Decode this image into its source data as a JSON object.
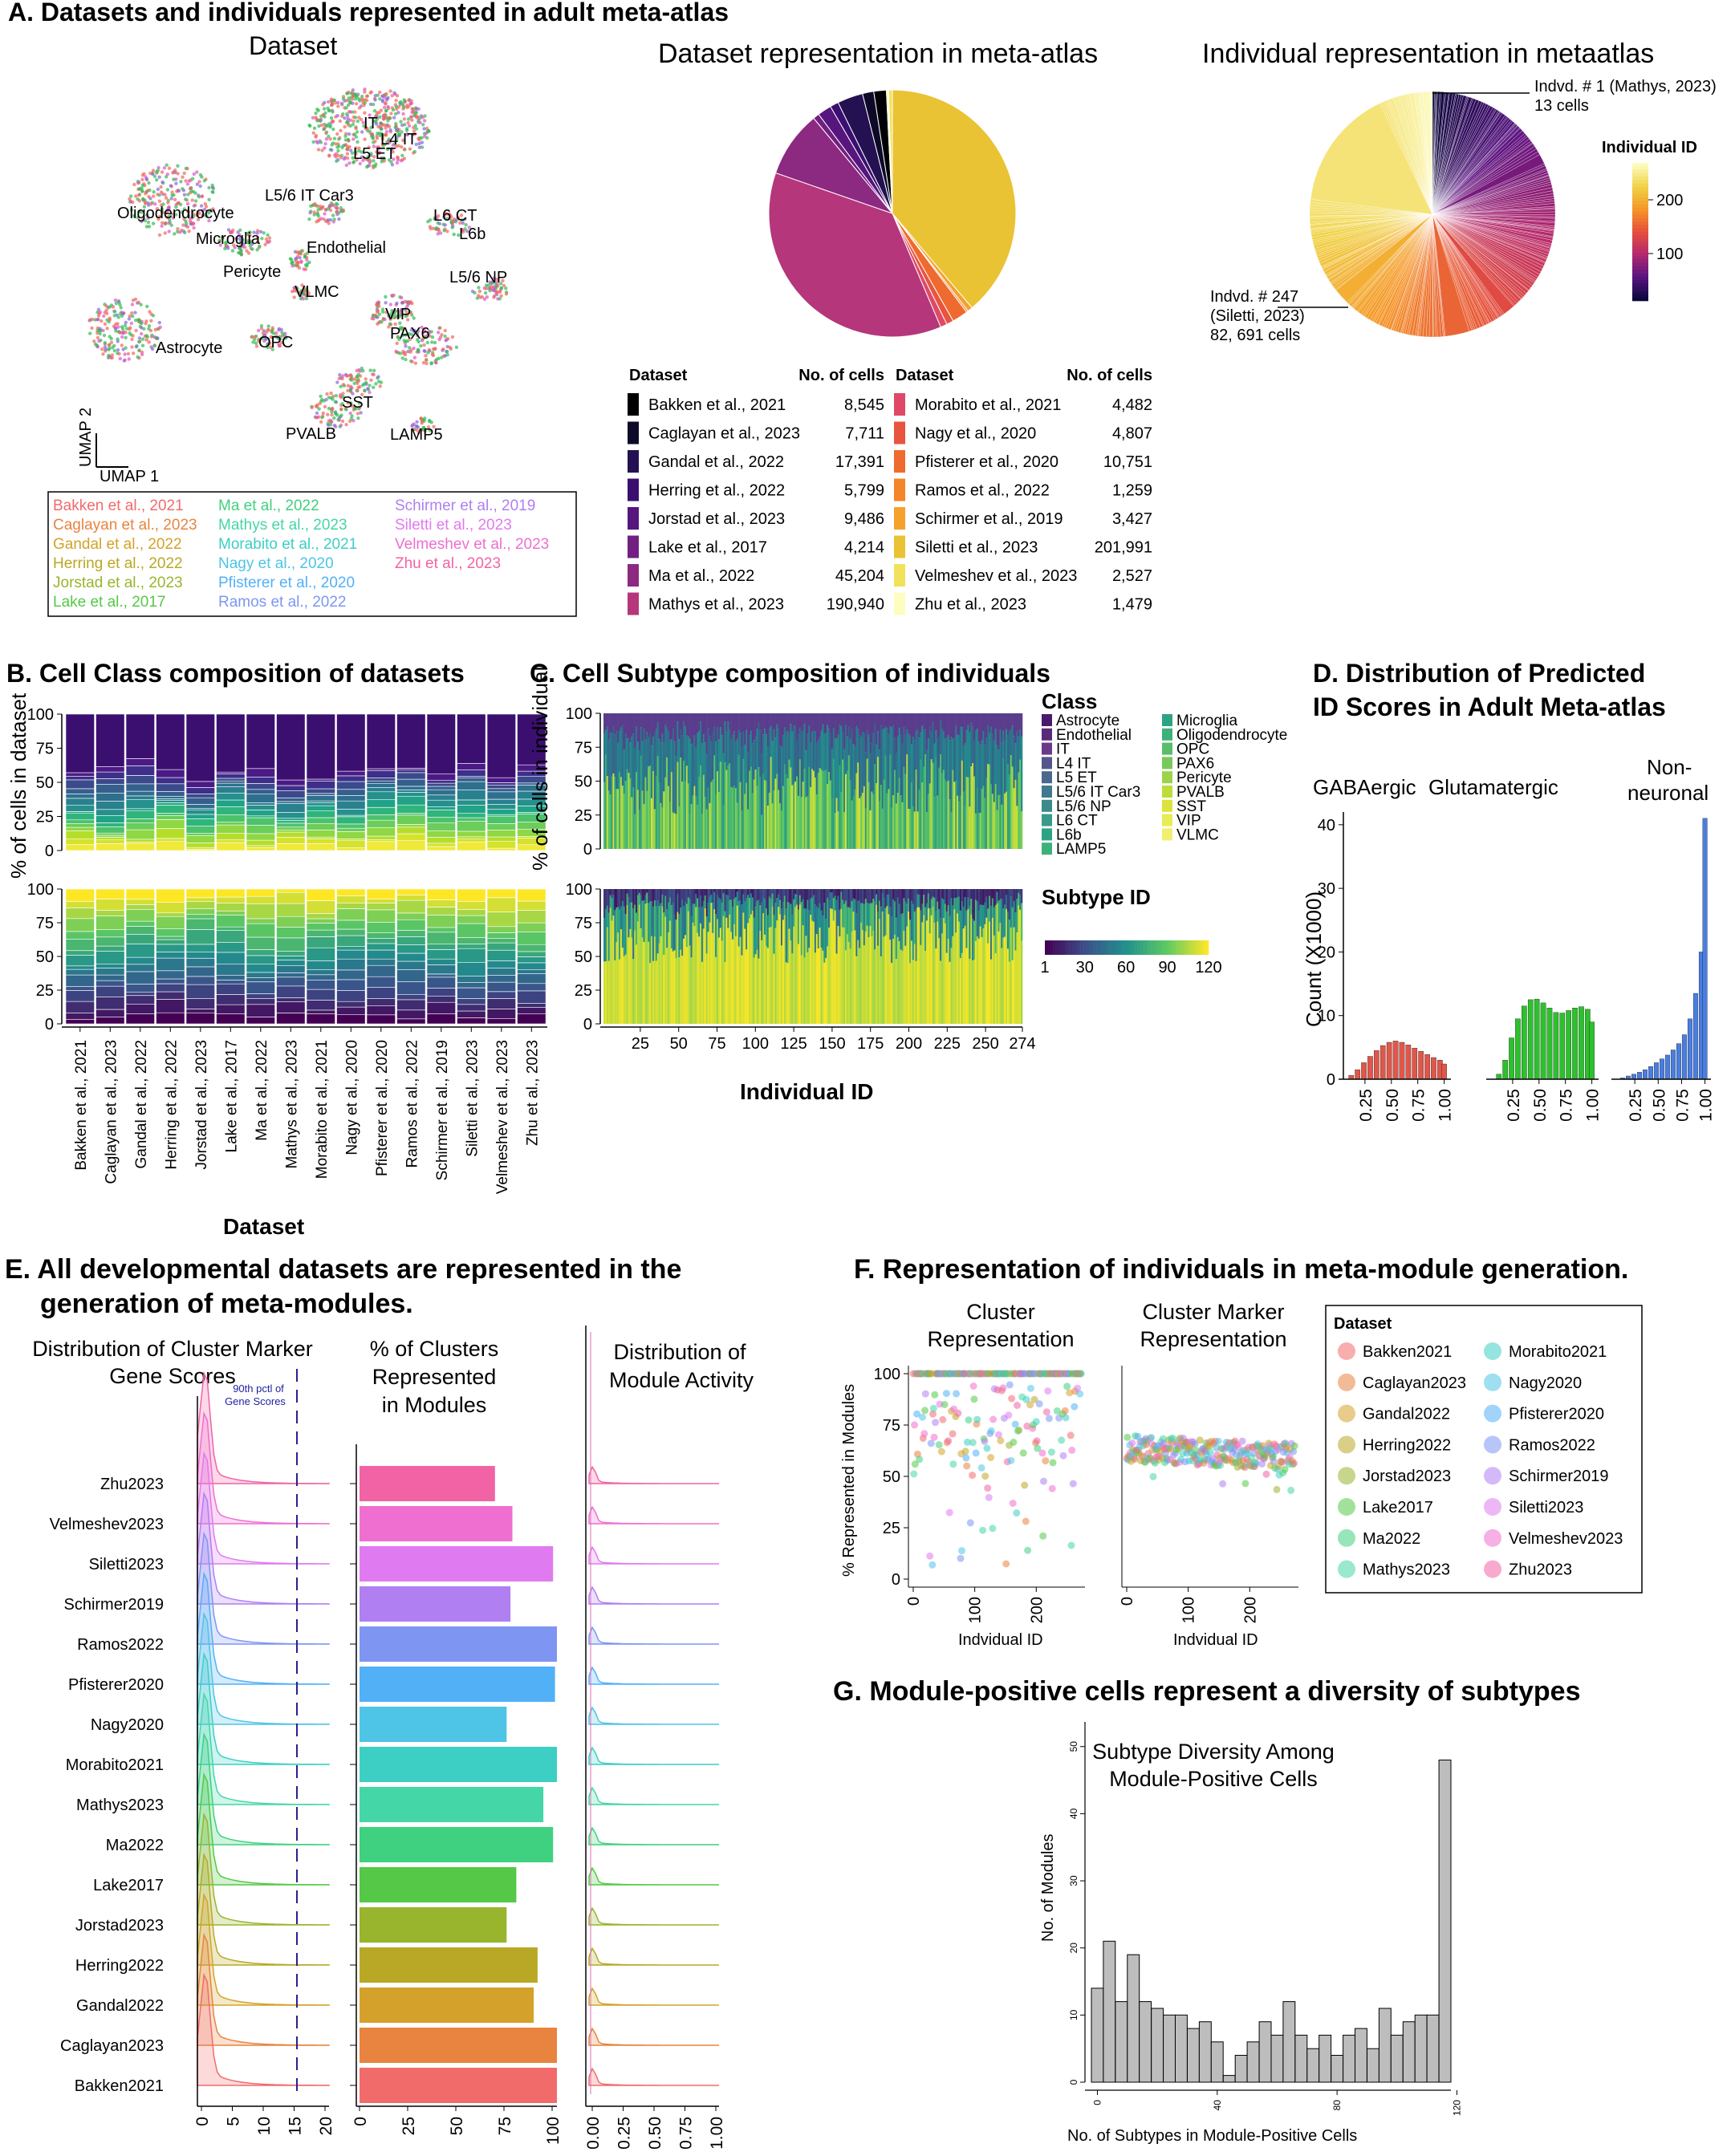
{
  "colors": {
    "datasets": [
      "#f26b6b",
      "#e8843f",
      "#d4a22a",
      "#b9a825",
      "#98b52d",
      "#55c847",
      "#3fd17f",
      "#45d6a8",
      "#3dcfc4",
      "#4ec4e6",
      "#52b0f7",
      "#7e96f2",
      "#b07ff2",
      "#e07af0",
      "#ee6fd0",
      "#f263a5"
    ],
    "umap_groups": [
      "#f0665c",
      "#33bb55",
      "#8866dd",
      "#dd55cc"
    ],
    "hist_red": "#e0574a",
    "hist_green": "#2ec02e",
    "hist_blue": "#4a7ee0",
    "line_purple": "#2a1f8f"
  },
  "panelA": {
    "title": "A. Datasets and individuals represented in adult meta-atlas",
    "umap_title": "Dataset",
    "umap_clusters": [
      "IT",
      "L4 IT",
      "L5 ET",
      "L5/6 IT Car3",
      "Oligodendrocyte",
      "L6 CT",
      "L6b",
      "Microglia",
      "Endothelial",
      "Pericyte",
      "VLMC",
      "L5/6 NP",
      "VIP",
      "PAX6",
      "Astrocyte",
      "OPC",
      "SST",
      "PVALB",
      "LAMP5"
    ],
    "umap_axes": [
      "UMAP 1",
      "UMAP 2"
    ],
    "legend_col1": [
      "Bakken et al., 2021",
      "Caglayan et al., 2023",
      "Gandal et al., 2022",
      "Herring et al., 2022",
      "Jorstad et al., 2023",
      "Lake et al., 2017"
    ],
    "legend_col2": [
      "Ma et al., 2022",
      "Mathys et al., 2023",
      "Morabito et al., 2021",
      "Nagy et al., 2020",
      "Pfisterer et al., 2020",
      "Ramos et al., 2022"
    ],
    "legend_col3": [
      "Schirmer et al., 2019",
      "Siletti et al., 2023",
      "Velmeshev et al., 2023",
      "Zhu et al., 2023"
    ],
    "pie1_title": "Dataset representation in meta-atlas",
    "pie2_title": "Individual representation in metaatlas",
    "table_headers": [
      "Dataset",
      "No. of cells",
      "Dataset",
      "No. of cells"
    ],
    "table_left": [
      {
        "name": "Bakken et al., 2021",
        "cells": "8,545",
        "color": "#000004"
      },
      {
        "name": "Caglayan et al., 2023",
        "cells": "7,711",
        "color": "#0d0a29"
      },
      {
        "name": "Gandal et al., 2022",
        "cells": "17,391",
        "color": "#231151"
      },
      {
        "name": "Herring et al., 2022",
        "cells": "5,799",
        "color": "#3b0f70"
      },
      {
        "name": "Jorstad et al., 2023",
        "cells": "9,486",
        "color": "#57157e"
      },
      {
        "name": "Lake et al., 2017",
        "cells": "4,214",
        "color": "#721f81"
      },
      {
        "name": "Ma et al., 2022",
        "cells": "45,204",
        "color": "#8c2981"
      },
      {
        "name": "Mathys et al., 2023",
        "cells": "190,940",
        "color": "#b5367a"
      }
    ],
    "table_right": [
      {
        "name": "Morabito et al., 2021",
        "cells": "4,482",
        "color": "#de4968"
      },
      {
        "name": "Nagy et al., 2020",
        "cells": "4,807",
        "color": "#e8543e"
      },
      {
        "name": "Pfisterer et al., 2020",
        "cells": "10,751",
        "color": "#ef6a2e"
      },
      {
        "name": "Ramos et al., 2022",
        "cells": "1,259",
        "color": "#f4852a"
      },
      {
        "name": "Schirmer et al., 2019",
        "cells": "3,427",
        "color": "#f5a12c"
      },
      {
        "name": "Siletti et al., 2023",
        "cells": "201,991",
        "color": "#eac334"
      },
      {
        "name": "Velmeshev et al., 2023",
        "cells": "2,527",
        "color": "#f2e15a"
      },
      {
        "name": "Zhu et al., 2023",
        "cells": "1,479",
        "color": "#fcfdbf"
      }
    ],
    "annot1": [
      "Indvd. # 1 (Mathys, 2023)",
      "13 cells"
    ],
    "annot2": [
      "Indvd. # 247",
      "(Siletti, 2023)",
      "82, 691 cells"
    ],
    "colorbar_title": "Individual ID",
    "colorbar_ticks": [
      "200",
      "100"
    ]
  },
  "panelB": {
    "title": "B. Cell Class composition of datasets",
    "ylabel": "% of cells in dataset",
    "xlabel": "Dataset",
    "yticks": [
      "100",
      "75",
      "50",
      "25",
      "0"
    ],
    "categories": [
      "Bakken et al., 2021",
      "Caglayan et al., 2023",
      "Gandal et al., 2022",
      "Herring et al., 2022",
      "Jorstad et al., 2023",
      "Lake et al., 2017",
      "Ma et al., 2022",
      "Mathys et al., 2023",
      "Morabito et al., 2021",
      "Nagy et al., 2020",
      "Pfisterer et al., 2020",
      "Ramos et al., 2022",
      "Schirmer et al., 2019",
      "Siletti et al., 2023",
      "Velmeshev et al., 2023",
      "Zhu et al., 2023"
    ]
  },
  "panelC": {
    "title": "C. Cell Subtype composition of individuals",
    "ylabel": "% of cells in individual",
    "xlabel": "Individual ID",
    "xticks": [
      "25",
      "50",
      "75",
      "100",
      "125",
      "150",
      "175",
      "200",
      "225",
      "250",
      "274"
    ],
    "legend_title": "Class",
    "classes_col1": [
      "Astrocyte",
      "Endothelial",
      "IT",
      "L4 IT",
      "L5 ET",
      "L5/6 IT Car3",
      "L5/6 NP",
      "L6 CT",
      "L6b",
      "LAMP5"
    ],
    "classes_col2": [
      "Microglia",
      "Oligodendrocyte",
      "OPC",
      "PAX6",
      "Pericyte",
      "PVALB",
      "SST",
      "VIP",
      "VLMC"
    ],
    "subtype_title": "Subtype ID",
    "subtype_ticks": [
      "1",
      "30",
      "60",
      "90",
      "120"
    ]
  },
  "panelD": {
    "title_lines": [
      "D. Distribution of Predicted",
      "ID Scores in Adult Meta-atlas"
    ],
    "facets": [
      "GABAergic",
      "Glutamatergic",
      "Non-",
      "neuronal"
    ],
    "ylabel": "Count (X1000)",
    "yticks": [
      "40",
      "30",
      "20",
      "10",
      "0"
    ],
    "xticks": [
      "0.25",
      "0.50",
      "0.75",
      "1.00"
    ]
  },
  "panelE": {
    "title_lines": [
      "E. All developmental datasets are represented in the",
      "generation of meta-modules."
    ],
    "sub1": [
      "Distribution of Cluster Marker",
      "Gene Scores"
    ],
    "sub2": [
      "% of Clusters",
      "Represented",
      "in Modules"
    ],
    "sub3": [
      "Distribution of",
      "Module Activity"
    ],
    "pctl_label": [
      "90th pctl of",
      "Gene Scores"
    ],
    "rows": [
      "Zhu2023",
      "Velmeshev2023",
      "Siletti2023",
      "Schirmer2019",
      "Ramos2022",
      "Pfisterer2020",
      "Nagy2020",
      "Morabito2021",
      "Mathys2023",
      "Ma2022",
      "Lake2017",
      "Jorstad2023",
      "Herring2022",
      "Gandal2022",
      "Caglayan2023",
      "Bakken2021"
    ],
    "x1_ticks": [
      "0",
      "5",
      "10",
      "15",
      "20"
    ],
    "x2_ticks": [
      "0",
      "25",
      "50",
      "75",
      "100"
    ],
    "x3_ticks": [
      "0.00",
      "0.25",
      "0.50",
      "0.75",
      "1.00"
    ]
  },
  "panelF": {
    "title": "F. Representation of individuals in meta-module generation.",
    "sub1": [
      "Cluster",
      "Representation"
    ],
    "sub2": [
      "Cluster Marker",
      "Representation"
    ],
    "ylabel": "% Represented in Modules",
    "xlabel": "Indvidual ID",
    "yticks": [
      "100",
      "75",
      "50",
      "25",
      "0"
    ],
    "xticks": [
      "0",
      "100",
      "200"
    ],
    "legend_title": "Dataset",
    "legend_col1": [
      "Bakken2021",
      "Caglayan2023",
      "Gandal2022",
      "Herring2022",
      "Jorstad2023",
      "Lake2017",
      "Ma2022",
      "Mathys2023"
    ],
    "legend_col2": [
      "Morabito2021",
      "Nagy2020",
      "Pfisterer2020",
      "Ramos2022",
      "Schirmer2019",
      "Siletti2023",
      "Velmeshev2023",
      "Zhu2023"
    ]
  },
  "panelG": {
    "title": "G. Module-positive cells represent a diversity of subtypes",
    "plot_title": [
      "Subtype Diversity Among",
      "Module-Positive Cells"
    ],
    "ylabel": "No. of Modules",
    "xlabel": "No. of Subtypes in Module-Positive Cells",
    "yticks": [
      "0",
      "10",
      "20",
      "30",
      "40",
      "50"
    ],
    "xticks": [
      "0",
      "40",
      "80",
      "120"
    ]
  },
  "chart_data": [
    {
      "type": "scatter",
      "title": "Dataset",
      "xlabel": "UMAP 1",
      "ylabel": "UMAP 2",
      "note": "UMAP embedding colored by dataset with cluster labels"
    },
    {
      "type": "pie",
      "title": "Dataset representation in meta-atlas",
      "categories": [
        "Bakken et al., 2021",
        "Caglayan et al., 2023",
        "Gandal et al., 2022",
        "Herring et al., 2022",
        "Jorstad et al., 2023",
        "Lake et al., 2017",
        "Ma et al., 2022",
        "Mathys et al., 2023",
        "Morabito et al., 2021",
        "Nagy et al., 2020",
        "Pfisterer et al., 2020",
        "Ramos et al., 2022",
        "Schirmer et al., 2019",
        "Siletti et al., 2023",
        "Velmeshev et al., 2023",
        "Zhu et al., 2023"
      ],
      "values": [
        8545,
        7711,
        17391,
        5799,
        9486,
        4214,
        45204,
        190940,
        4482,
        4807,
        10751,
        1259,
        3427,
        201991,
        2527,
        1479
      ]
    },
    {
      "type": "pie",
      "title": "Individual representation in metaatlas",
      "note": "274 individuals colored by Individual ID",
      "colorbar_range": [
        1,
        274
      ]
    },
    {
      "type": "bar",
      "title": "Cell Class composition of datasets",
      "stacked": true,
      "ylabel": "% of cells in dataset",
      "ylim": [
        0,
        100
      ]
    },
    {
      "type": "bar",
      "title": "Cell Subtype composition of individuals",
      "stacked": true,
      "xlabel": "Individual ID",
      "xlim": [
        1,
        274
      ],
      "ylim": [
        0,
        100
      ]
    },
    {
      "type": "bar",
      "title": "Distribution of Predicted ID Scores",
      "facets": [
        "GABAergic",
        "Glutamatergic",
        "Non-neuronal"
      ],
      "ylabel": "Count (X1000)",
      "ylim": [
        0,
        42
      ],
      "xlim": [
        0.0,
        1.0
      ],
      "x": [
        0.12,
        0.18,
        0.24,
        0.3,
        0.36,
        0.42,
        0.48,
        0.54,
        0.6,
        0.66,
        0.72,
        0.78,
        0.84,
        0.9,
        0.96,
        1.0
      ],
      "series": [
        {
          "name": "GABAergic",
          "values": [
            0.6,
            1.5,
            2.6,
            3.6,
            4.5,
            5.3,
            5.8,
            6.0,
            5.8,
            5.4,
            4.9,
            4.4,
            3.9,
            3.4,
            3.0,
            2.4
          ]
        },
        {
          "name": "Glutamatergic",
          "values": [
            0.8,
            3.0,
            6.5,
            9.5,
            11.5,
            12.5,
            12.6,
            12.0,
            11.2,
            10.5,
            10.4,
            10.8,
            11.2,
            11.4,
            11.0,
            9.0
          ]
        },
        {
          "name": "Non-neuronal",
          "values": [
            0.2,
            0.5,
            0.8,
            1.1,
            1.5,
            2.0,
            2.6,
            3.2,
            3.8,
            4.6,
            5.6,
            7.0,
            9.5,
            13.5,
            20.0,
            41.0
          ]
        }
      ]
    },
    {
      "type": "bar",
      "title": "% of Clusters Represented in Modules",
      "categories": [
        "Zhu2023",
        "Velmeshev2023",
        "Siletti2023",
        "Schirmer2019",
        "Ramos2022",
        "Pfisterer2020",
        "Nagy2020",
        "Morabito2021",
        "Mathys2023",
        "Ma2022",
        "Lake2017",
        "Jorstad2023",
        "Herring2022",
        "Gandal2022",
        "Caglayan2023",
        "Bakken2021"
      ],
      "values": [
        70,
        79,
        100,
        78,
        102,
        101,
        76,
        102,
        95,
        100,
        81,
        76,
        92,
        90,
        102,
        102
      ],
      "xlim": [
        0,
        100
      ]
    },
    {
      "type": "scatter",
      "title": "Cluster Representation",
      "xlabel": "Indvidual ID",
      "ylabel": "% Represented in Modules",
      "ylim": [
        0,
        100
      ],
      "xlim": [
        0,
        274
      ]
    },
    {
      "type": "scatter",
      "title": "Cluster Marker Representation",
      "xlabel": "Indvidual ID",
      "ylim": [
        0,
        100
      ],
      "xlim": [
        0,
        274
      ]
    },
    {
      "type": "bar",
      "title": "Subtype Diversity Among Module-Positive Cells",
      "xlabel": "No. of Subtypes in Module-Positive Cells",
      "ylabel": "No. of Modules",
      "ylim": [
        0,
        50
      ],
      "x": [
        0,
        4,
        8,
        12,
        16,
        20,
        24,
        28,
        32,
        36,
        40,
        44,
        48,
        52,
        56,
        60,
        64,
        68,
        72,
        76,
        80,
        84,
        88,
        92,
        96,
        100,
        104,
        108,
        112,
        116,
        120
      ],
      "values": [
        14,
        21,
        12,
        19,
        12,
        11,
        10,
        10,
        8,
        9,
        6,
        1,
        4,
        6,
        9,
        7,
        12,
        7,
        5,
        7,
        4,
        7,
        8,
        5,
        11,
        7,
        9,
        10,
        10,
        48,
        0
      ]
    }
  ]
}
